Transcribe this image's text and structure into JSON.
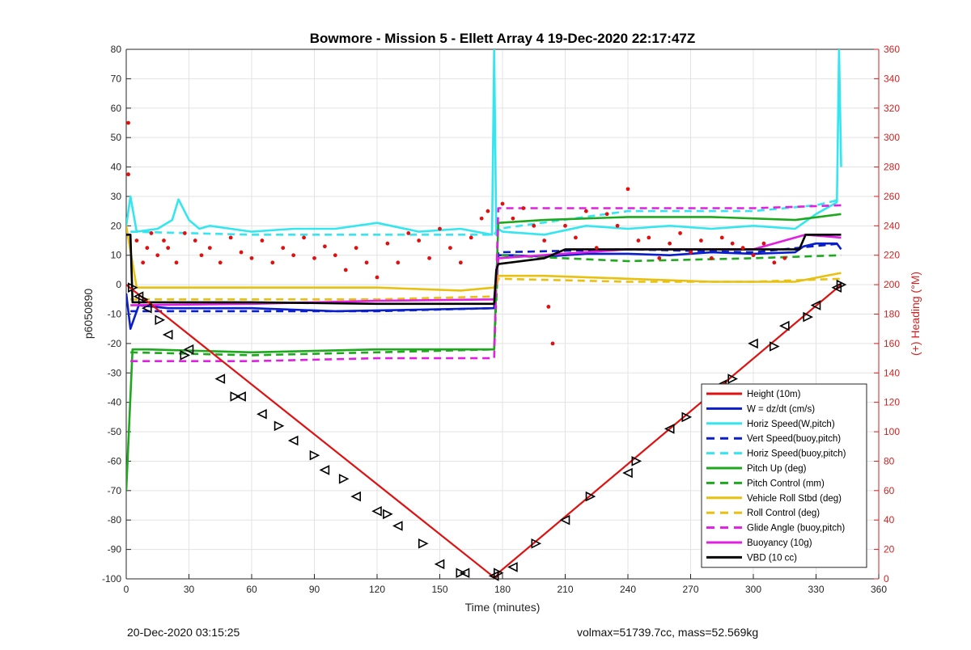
{
  "chart_data": {
    "type": "line",
    "title": "Bowmore - Mission 5 - Ellett Array 4 19-Dec-2020 22:17:47Z",
    "xlabel": "Time (minutes)",
    "ylabel": "p6050890",
    "y2label": "(+) Heading (°M)",
    "xlim": [
      0,
      360
    ],
    "ylim": [
      -100,
      80
    ],
    "y2lim": [
      0,
      360
    ],
    "xticks": [
      "0",
      "30",
      "60",
      "90",
      "120",
      "150",
      "180",
      "210",
      "240",
      "270",
      "300",
      "330",
      "360"
    ],
    "yticks": [
      "80",
      "70",
      "60",
      "50",
      "40",
      "30",
      "20",
      "10",
      "0",
      "-10",
      "-20",
      "-30",
      "-40",
      "-50",
      "-60",
      "-70",
      "-80",
      "-90",
      "-100"
    ],
    "y2ticks": [
      "360",
      "340",
      "320",
      "300",
      "280",
      "260",
      "240",
      "220",
      "200",
      "180",
      "160",
      "140",
      "120",
      "100",
      "80",
      "60",
      "40",
      "20",
      "0"
    ],
    "grid": true,
    "legend_position": "bottom-right",
    "legend": [
      {
        "label": "Height (10m)",
        "color": "#e01010",
        "dash": "solid"
      },
      {
        "label": "W = dz/dt (cm/s)",
        "color": "#0a1fc8",
        "dash": "solid"
      },
      {
        "label": "Horiz Speed(W,pitch)",
        "color": "#33e6f0",
        "dash": "solid"
      },
      {
        "label": "Vert Speed(buoy,pitch)",
        "color": "#0a1fc8",
        "dash": "dashed"
      },
      {
        "label": "Horiz Speed(buoy,pitch)",
        "color": "#33e6f0",
        "dash": "dashed"
      },
      {
        "label": "Pitch Up (deg)",
        "color": "#1ea81e",
        "dash": "solid"
      },
      {
        "label": "Pitch Control (mm)",
        "color": "#1ea81e",
        "dash": "dashed"
      },
      {
        "label": "Vehicle Roll Stbd (deg)",
        "color": "#e8c010",
        "dash": "solid"
      },
      {
        "label": "Roll Control (deg)",
        "color": "#e8c010",
        "dash": "dashed"
      },
      {
        "label": "Glide Angle (buoy,pitch)",
        "color": "#e020e0",
        "dash": "dashed"
      },
      {
        "label": "Buoyancy (10g)",
        "color": "#e020e0",
        "dash": "solid"
      },
      {
        "label": "VBD (10 cc)",
        "color": "#000000",
        "dash": "solid"
      }
    ],
    "series": [
      {
        "name": "Height (10m)",
        "color": "#e01010",
        "x": [
          0,
          176,
          177,
          178,
          342
        ],
        "y": [
          0,
          -99.5,
          -99.5,
          -98,
          0
        ]
      },
      {
        "name": "W = dz/dt (cm/s)",
        "color": "#0a1fc8",
        "x": [
          0,
          2,
          6,
          20,
          60,
          100,
          140,
          176,
          178,
          185,
          200,
          220,
          240,
          260,
          280,
          300,
          320,
          324,
          330,
          340,
          342
        ],
        "y": [
          -3,
          -15,
          -7,
          -8,
          -8,
          -9,
          -8.5,
          -8,
          10,
          10,
          9.5,
          10.5,
          10.5,
          10,
          11,
          10.5,
          11,
          13,
          14,
          14,
          12
        ]
      },
      {
        "name": "Horiz Speed(W,pitch)",
        "color": "#33e6f0",
        "x": [
          0,
          2,
          5,
          15,
          22,
          25,
          30,
          35,
          40,
          60,
          80,
          100,
          120,
          140,
          160,
          175,
          176,
          177,
          178,
          180,
          200,
          220,
          240,
          260,
          280,
          300,
          320,
          330,
          340,
          341,
          342
        ],
        "y": [
          20,
          30,
          18,
          19,
          22,
          29,
          22,
          19,
          20,
          18,
          19,
          19,
          21,
          18,
          19,
          17,
          80,
          17,
          19,
          18,
          17,
          20,
          19,
          20,
          19,
          20,
          19,
          24,
          28,
          80,
          40
        ]
      },
      {
        "name": "Vert Speed(buoy,pitch)",
        "color": "#0a1fc8",
        "dash": "dashed",
        "x": [
          2,
          60,
          120,
          176,
          178,
          240,
          300,
          342
        ],
        "y": [
          -9,
          -9,
          -9,
          -8,
          11,
          12,
          11,
          14
        ]
      },
      {
        "name": "Horiz Speed(buoy,pitch)",
        "color": "#33e6f0",
        "dash": "dashed",
        "x": [
          2,
          60,
          120,
          176,
          178,
          240,
          300,
          330,
          342
        ],
        "y": [
          18,
          17,
          17,
          17,
          19,
          25,
          25,
          27,
          29
        ]
      },
      {
        "name": "Pitch Up (deg)",
        "color": "#1ea81e",
        "x": [
          0,
          3,
          10,
          60,
          120,
          176,
          178,
          200,
          240,
          280,
          320,
          342
        ],
        "y": [
          -70,
          -22,
          -22,
          -23,
          -22,
          -22,
          21,
          22,
          23,
          23,
          22,
          24
        ]
      },
      {
        "name": "Pitch Control (mm)",
        "color": "#1ea81e",
        "dash": "dashed",
        "x": [
          2,
          60,
          120,
          176,
          178,
          240,
          300,
          342
        ],
        "y": [
          -23,
          -24,
          -23,
          -22,
          10,
          8,
          9,
          10
        ]
      },
      {
        "name": "Vehicle Roll Stbd (deg)",
        "color": "#e8c010",
        "x": [
          0,
          5,
          40,
          80,
          120,
          160,
          176,
          178,
          200,
          240,
          280,
          320,
          342
        ],
        "y": [
          20,
          -1,
          -1,
          -1,
          -1,
          -2,
          -1,
          3,
          3,
          2,
          1,
          1,
          4
        ]
      },
      {
        "name": "Roll Control (deg)",
        "color": "#e8c010",
        "dash": "dashed",
        "x": [
          2,
          60,
          120,
          176,
          178,
          240,
          300,
          342
        ],
        "y": [
          -5,
          -5,
          -5,
          -4,
          2,
          1,
          1,
          2
        ]
      },
      {
        "name": "Glide Angle (buoy,pitch)",
        "color": "#e020e0",
        "dash": "dashed",
        "x": [
          2,
          60,
          120,
          176,
          178,
          240,
          300,
          342
        ],
        "y": [
          -26,
          -26,
          -25,
          -25,
          26,
          26,
          26,
          27
        ]
      },
      {
        "name": "Buoyancy (10g)",
        "color": "#e020e0",
        "x": [
          2,
          60,
          120,
          176,
          178,
          240,
          300,
          325,
          342
        ],
        "y": [
          -7,
          -6.5,
          -5.5,
          -5,
          9,
          12,
          12,
          17,
          16
        ]
      },
      {
        "name": "VBD (10 cc)",
        "color": "#000000",
        "x": [
          0,
          2,
          3,
          60,
          120,
          176,
          177,
          178,
          200,
          210,
          300,
          322,
          325,
          342
        ],
        "y": [
          17,
          17,
          -6,
          -6,
          -6.5,
          -6.5,
          5,
          7,
          9,
          12,
          12,
          12,
          17,
          17
        ]
      }
    ],
    "heading_points": {
      "name": "Heading",
      "axis": "right",
      "color": "#e01010",
      "x": [
        1,
        1,
        5,
        8,
        10,
        12,
        15,
        18,
        20,
        24,
        28,
        33,
        36,
        40,
        45,
        50,
        55,
        60,
        65,
        70,
        75,
        80,
        85,
        90,
        95,
        100,
        105,
        110,
        115,
        120,
        125,
        130,
        135,
        140,
        145,
        150,
        155,
        160,
        165,
        170,
        173,
        180,
        185,
        190,
        195,
        200,
        202,
        204,
        210,
        215,
        220,
        225,
        230,
        235,
        240,
        245,
        250,
        255,
        260,
        265,
        270,
        275,
        280,
        285,
        290,
        295,
        300,
        305,
        310,
        315
      ],
      "y": [
        310,
        275,
        230,
        215,
        225,
        235,
        220,
        230,
        225,
        215,
        235,
        230,
        220,
        225,
        215,
        232,
        222,
        218,
        230,
        215,
        225,
        220,
        232,
        218,
        226,
        220,
        210,
        225,
        215,
        205,
        228,
        215,
        235,
        230,
        218,
        238,
        225,
        215,
        232,
        245,
        250,
        255,
        245,
        252,
        240,
        230,
        185,
        160,
        240,
        232,
        250,
        225,
        248,
        240,
        265,
        230,
        232,
        218,
        228,
        235,
        222,
        230,
        218,
        232,
        228,
        225,
        220,
        228,
        215,
        218
      ]
    },
    "markers": {
      "triangles_left": {
        "x": [
          6,
          10,
          20,
          30,
          45,
          55,
          65,
          80,
          95,
          110,
          120,
          130,
          150,
          162,
          176,
          185,
          210,
          240,
          260,
          285,
          300,
          315,
          330,
          340
        ],
        "y": [
          -4,
          -8,
          -17,
          -22,
          -32,
          -38,
          -44,
          -53,
          -63,
          -72,
          -77,
          -82,
          -95,
          -98,
          -99,
          -96,
          -80,
          -64,
          -49,
          -34,
          -20,
          -14,
          -7,
          -1
        ]
      },
      "triangles_right": {
        "x": [
          3,
          8,
          16,
          28,
          52,
          73,
          90,
          104,
          125,
          142,
          160,
          178,
          196,
          222,
          244,
          268,
          290,
          310,
          326,
          342
        ],
        "y": [
          -1,
          -5,
          -12,
          -24,
          -38,
          -48,
          -58,
          -66,
          -78,
          -88,
          -98,
          -98,
          -88,
          -72,
          -60,
          -45,
          -32,
          -21,
          -11,
          0
        ]
      }
    }
  },
  "footer": {
    "timestamp": "20-Dec-2020 03:15:25",
    "stats": "volmax=51739.7cc, mass=52.569kg"
  }
}
